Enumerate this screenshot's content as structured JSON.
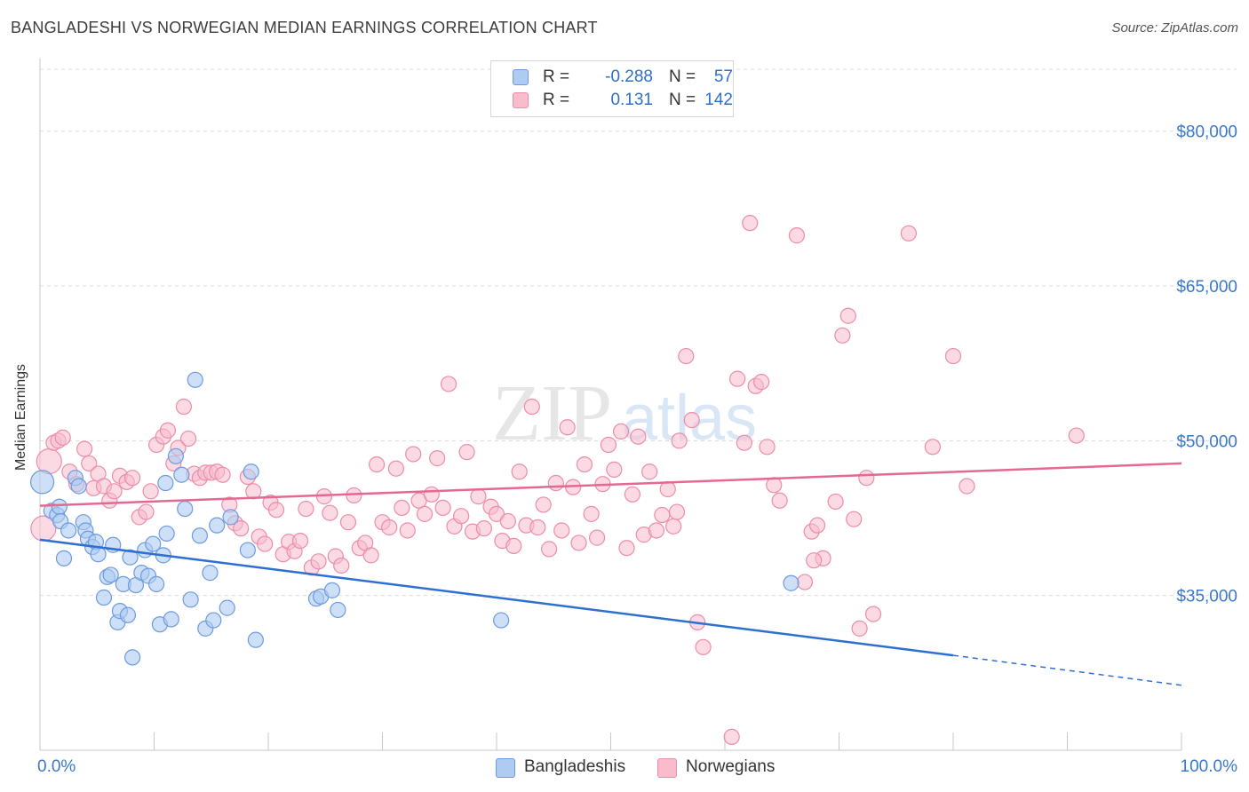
{
  "title": "BANGLADESHI VS NORWEGIAN MEDIAN EARNINGS CORRELATION CHART",
  "source": "Source: ZipAtlas.com",
  "watermark": {
    "zip": "ZIP",
    "atlas": "atlas"
  },
  "colors": {
    "blue_fill": "#aecbf2",
    "blue_stroke": "#6d9ae0",
    "blue_line": "#2e6fd1",
    "pink_fill": "#f8bccd",
    "pink_stroke": "#ec8ca8",
    "pink_line": "#e46892",
    "axis_text": "#3a78cc",
    "grid": "#dcdcdc"
  },
  "legend_top": {
    "rows": [
      {
        "r_label": "R =",
        "r_value": "-0.288",
        "n_label": "N =",
        "n_value": "57"
      },
      {
        "r_label": "R =",
        "r_value": "0.131",
        "n_label": "N =",
        "n_value": "142"
      }
    ]
  },
  "legend_bottom": {
    "items": [
      "Bangladeshis",
      "Norwegians"
    ]
  },
  "chart_data": {
    "type": "scatter",
    "title": "BANGLADESHI VS NORWEGIAN MEDIAN EARNINGS CORRELATION CHART",
    "xlabel": "",
    "ylabel": "Median Earnings",
    "xlim": [
      0,
      100
    ],
    "ylim": [
      20000,
      86000
    ],
    "x_tick_labels": [
      "0.0%",
      "100.0%"
    ],
    "y_ticks": [
      35000,
      50000,
      65000,
      80000
    ],
    "y_tick_labels": [
      "$35,000",
      "$50,000",
      "$65,000",
      "$80,000"
    ],
    "grid": true,
    "legend_placement": "bottom",
    "series": [
      {
        "name": "Bangladeshis",
        "r": -0.288,
        "n": 57,
        "trend": {
          "x0": 0,
          "y0": 40400,
          "x1": 80,
          "y1": 29200,
          "dash_to_x": 100,
          "dash_to_y": 26300
        },
        "points": [
          [
            0.2,
            46000
          ],
          [
            1.0,
            43200
          ],
          [
            1.5,
            42800
          ],
          [
            1.7,
            43600
          ],
          [
            1.8,
            42200
          ],
          [
            2.1,
            38600
          ],
          [
            2.5,
            41300
          ],
          [
            3.1,
            46400
          ],
          [
            3.4,
            45600
          ],
          [
            3.8,
            42100
          ],
          [
            4.0,
            41300
          ],
          [
            4.2,
            40500
          ],
          [
            4.6,
            39700
          ],
          [
            4.9,
            40200
          ],
          [
            5.1,
            39000
          ],
          [
            5.6,
            34800
          ],
          [
            5.9,
            36800
          ],
          [
            6.2,
            37000
          ],
          [
            6.4,
            39900
          ],
          [
            6.8,
            32400
          ],
          [
            7.0,
            33500
          ],
          [
            7.3,
            36100
          ],
          [
            7.7,
            33100
          ],
          [
            7.9,
            38700
          ],
          [
            8.1,
            29000
          ],
          [
            8.4,
            36000
          ],
          [
            8.9,
            37200
          ],
          [
            9.2,
            39400
          ],
          [
            9.5,
            36900
          ],
          [
            9.9,
            40000
          ],
          [
            10.2,
            36100
          ],
          [
            10.5,
            32200
          ],
          [
            10.8,
            38900
          ],
          [
            11.1,
            41000
          ],
          [
            11.5,
            32700
          ],
          [
            11.9,
            48500
          ],
          [
            12.4,
            46700
          ],
          [
            12.7,
            43400
          ],
          [
            13.2,
            34600
          ],
          [
            13.6,
            55900
          ],
          [
            14.0,
            40800
          ],
          [
            14.5,
            31800
          ],
          [
            14.9,
            37200
          ],
          [
            15.2,
            32600
          ],
          [
            15.5,
            41800
          ],
          [
            16.4,
            33800
          ],
          [
            16.7,
            42600
          ],
          [
            18.2,
            39400
          ],
          [
            18.5,
            47000
          ],
          [
            18.9,
            30700
          ],
          [
            24.2,
            34700
          ],
          [
            24.6,
            34900
          ],
          [
            25.6,
            35500
          ],
          [
            26.1,
            33600
          ],
          [
            40.4,
            32600
          ],
          [
            65.8,
            36200
          ],
          [
            11.0,
            45900
          ]
        ]
      },
      {
        "name": "Norwegians",
        "r": 0.131,
        "n": 142,
        "trend": {
          "x0": 0,
          "y0": 43700,
          "x1": 100,
          "y1": 47800
        },
        "points": [
          [
            0.3,
            41500
          ],
          [
            0.8,
            48000
          ],
          [
            1.2,
            49800
          ],
          [
            1.6,
            50000
          ],
          [
            2.0,
            50300
          ],
          [
            2.6,
            47000
          ],
          [
            3.2,
            45800
          ],
          [
            3.9,
            49200
          ],
          [
            4.3,
            47800
          ],
          [
            4.7,
            45400
          ],
          [
            5.1,
            46800
          ],
          [
            5.6,
            45600
          ],
          [
            6.1,
            44200
          ],
          [
            6.5,
            45100
          ],
          [
            7.0,
            46600
          ],
          [
            7.6,
            46000
          ],
          [
            8.1,
            46400
          ],
          [
            8.7,
            42600
          ],
          [
            9.3,
            43100
          ],
          [
            9.7,
            45100
          ],
          [
            10.2,
            49600
          ],
          [
            10.8,
            50400
          ],
          [
            11.2,
            51000
          ],
          [
            11.7,
            47800
          ],
          [
            12.1,
            49300
          ],
          [
            12.6,
            53300
          ],
          [
            13.0,
            50200
          ],
          [
            13.5,
            46800
          ],
          [
            14.0,
            46400
          ],
          [
            14.5,
            46900
          ],
          [
            15.0,
            46900
          ],
          [
            15.5,
            47000
          ],
          [
            16.0,
            46700
          ],
          [
            16.6,
            43800
          ],
          [
            17.1,
            42000
          ],
          [
            17.6,
            41500
          ],
          [
            18.2,
            46500
          ],
          [
            18.7,
            45100
          ],
          [
            19.2,
            40700
          ],
          [
            19.7,
            40000
          ],
          [
            20.2,
            44000
          ],
          [
            20.7,
            43300
          ],
          [
            21.3,
            39000
          ],
          [
            21.8,
            40200
          ],
          [
            22.3,
            39300
          ],
          [
            22.8,
            40300
          ],
          [
            23.3,
            43400
          ],
          [
            23.8,
            37700
          ],
          [
            24.4,
            38300
          ],
          [
            24.9,
            44600
          ],
          [
            25.4,
            43000
          ],
          [
            25.9,
            38800
          ],
          [
            26.4,
            37900
          ],
          [
            27.0,
            42100
          ],
          [
            27.5,
            44700
          ],
          [
            28.0,
            39600
          ],
          [
            28.5,
            40100
          ],
          [
            29.0,
            38900
          ],
          [
            29.5,
            47700
          ],
          [
            30.0,
            42100
          ],
          [
            30.6,
            41600
          ],
          [
            31.2,
            47300
          ],
          [
            31.7,
            43500
          ],
          [
            32.2,
            41300
          ],
          [
            32.7,
            48700
          ],
          [
            33.2,
            44200
          ],
          [
            33.7,
            42900
          ],
          [
            34.3,
            44800
          ],
          [
            34.8,
            48300
          ],
          [
            35.3,
            43500
          ],
          [
            35.8,
            55500
          ],
          [
            36.3,
            41700
          ],
          [
            36.9,
            42700
          ],
          [
            37.4,
            48900
          ],
          [
            37.9,
            41200
          ],
          [
            38.4,
            44600
          ],
          [
            38.9,
            41500
          ],
          [
            39.5,
            43600
          ],
          [
            40.0,
            42900
          ],
          [
            40.5,
            40300
          ],
          [
            41.0,
            42200
          ],
          [
            41.5,
            39800
          ],
          [
            42.0,
            47000
          ],
          [
            42.6,
            41800
          ],
          [
            43.1,
            53300
          ],
          [
            43.6,
            41600
          ],
          [
            44.1,
            43800
          ],
          [
            44.6,
            39500
          ],
          [
            45.2,
            45900
          ],
          [
            45.7,
            41300
          ],
          [
            46.2,
            51300
          ],
          [
            46.7,
            45500
          ],
          [
            47.2,
            40100
          ],
          [
            47.7,
            47700
          ],
          [
            48.3,
            42900
          ],
          [
            48.8,
            40600
          ],
          [
            49.3,
            45800
          ],
          [
            49.8,
            49600
          ],
          [
            50.3,
            47200
          ],
          [
            50.9,
            50900
          ],
          [
            51.4,
            39600
          ],
          [
            51.9,
            44800
          ],
          [
            52.4,
            50400
          ],
          [
            52.9,
            40900
          ],
          [
            53.4,
            47000
          ],
          [
            54.0,
            41300
          ],
          [
            54.5,
            42800
          ],
          [
            55.0,
            45300
          ],
          [
            55.5,
            41700
          ],
          [
            56.0,
            50000
          ],
          [
            56.6,
            58200
          ],
          [
            57.1,
            52000
          ],
          [
            57.6,
            32400
          ],
          [
            58.1,
            30000
          ],
          [
            60.6,
            21300
          ],
          [
            61.1,
            56000
          ],
          [
            61.7,
            49800
          ],
          [
            62.2,
            71100
          ],
          [
            62.7,
            55300
          ],
          [
            63.2,
            55700
          ],
          [
            63.7,
            49400
          ],
          [
            64.3,
            45700
          ],
          [
            64.8,
            44200
          ],
          [
            66.3,
            69900
          ],
          [
            67.0,
            36300
          ],
          [
            67.6,
            41200
          ],
          [
            68.1,
            41800
          ],
          [
            68.6,
            38600
          ],
          [
            69.7,
            44100
          ],
          [
            70.3,
            60200
          ],
          [
            70.8,
            62100
          ],
          [
            71.3,
            42400
          ],
          [
            71.8,
            31800
          ],
          [
            72.4,
            46400
          ],
          [
            73.0,
            33200
          ],
          [
            76.1,
            70100
          ],
          [
            78.2,
            49400
          ],
          [
            80.0,
            58200
          ],
          [
            81.2,
            45600
          ],
          [
            90.8,
            50500
          ],
          [
            55.8,
            43100
          ],
          [
            67.8,
            38400
          ]
        ]
      }
    ]
  }
}
